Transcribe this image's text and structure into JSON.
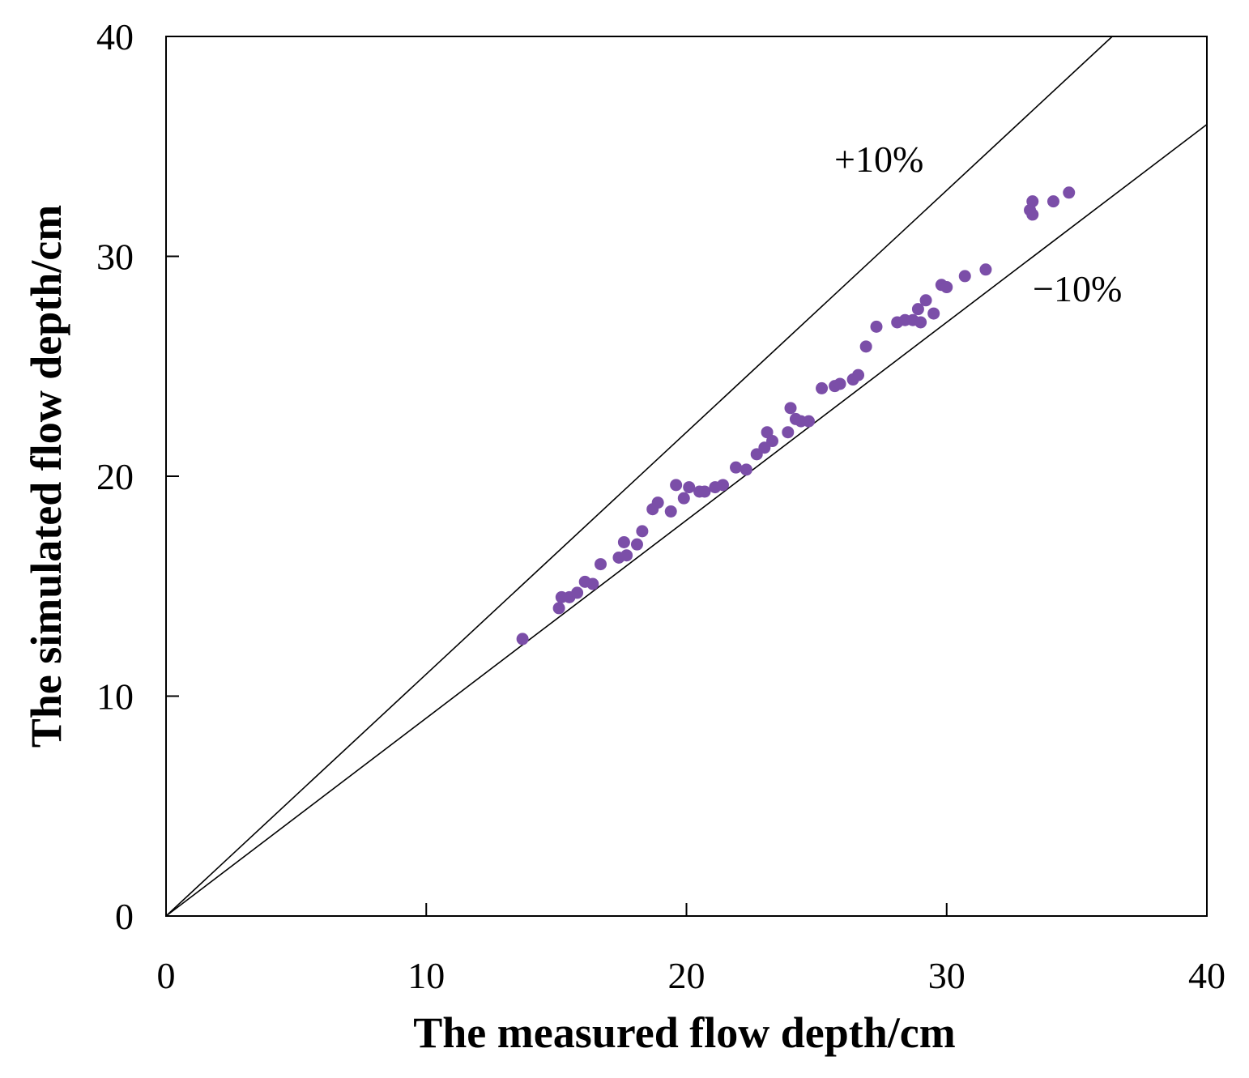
{
  "chart_data": {
    "type": "scatter",
    "xlabel": "The measured flow depth/cm",
    "ylabel": "The simulated flow depth/cm",
    "xlim": [
      0,
      40
    ],
    "ylim": [
      0,
      40
    ],
    "x_ticks": [
      "0",
      "10",
      "20",
      "30",
      "40"
    ],
    "y_ticks": [
      "0",
      "10",
      "20",
      "30",
      "40"
    ],
    "grid": false,
    "point_color": "#7b4ea8",
    "reference_lines": [
      {
        "label": "+10%",
        "slope": 1.1
      },
      {
        "label": "−10%",
        "slope": 0.9
      }
    ],
    "series": [
      {
        "points": [
          [
            13.7,
            12.6
          ],
          [
            15.1,
            14.0
          ],
          [
            15.2,
            14.5
          ],
          [
            15.5,
            14.5
          ],
          [
            15.8,
            14.7
          ],
          [
            16.1,
            15.2
          ],
          [
            16.4,
            15.1
          ],
          [
            16.7,
            16.0
          ],
          [
            17.4,
            16.3
          ],
          [
            17.6,
            17.0
          ],
          [
            17.7,
            16.4
          ],
          [
            18.1,
            16.9
          ],
          [
            18.3,
            17.5
          ],
          [
            18.7,
            18.5
          ],
          [
            18.9,
            18.8
          ],
          [
            19.4,
            18.4
          ],
          [
            19.6,
            19.6
          ],
          [
            19.9,
            19.0
          ],
          [
            20.1,
            19.5
          ],
          [
            20.5,
            19.3
          ],
          [
            20.7,
            19.3
          ],
          [
            21.1,
            19.5
          ],
          [
            21.4,
            19.6
          ],
          [
            21.9,
            20.4
          ],
          [
            22.3,
            20.3
          ],
          [
            22.7,
            21.0
          ],
          [
            23.0,
            21.3
          ],
          [
            23.1,
            22.0
          ],
          [
            23.3,
            21.6
          ],
          [
            23.9,
            22.0
          ],
          [
            24.0,
            23.1
          ],
          [
            24.2,
            22.6
          ],
          [
            24.4,
            22.5
          ],
          [
            24.7,
            22.5
          ],
          [
            25.2,
            24.0
          ],
          [
            25.7,
            24.1
          ],
          [
            25.9,
            24.2
          ],
          [
            26.4,
            24.4
          ],
          [
            26.6,
            24.6
          ],
          [
            26.9,
            25.9
          ],
          [
            27.3,
            26.8
          ],
          [
            28.1,
            27.0
          ],
          [
            28.4,
            27.1
          ],
          [
            28.7,
            27.1
          ],
          [
            28.9,
            27.6
          ],
          [
            29.0,
            27.0
          ],
          [
            29.2,
            28.0
          ],
          [
            29.5,
            27.4
          ],
          [
            29.8,
            28.7
          ],
          [
            30.0,
            28.6
          ],
          [
            30.7,
            29.1
          ],
          [
            31.5,
            29.4
          ],
          [
            33.2,
            32.1
          ],
          [
            33.3,
            32.5
          ],
          [
            33.3,
            31.9
          ],
          [
            34.1,
            32.5
          ],
          [
            34.7,
            32.9
          ]
        ]
      }
    ]
  }
}
